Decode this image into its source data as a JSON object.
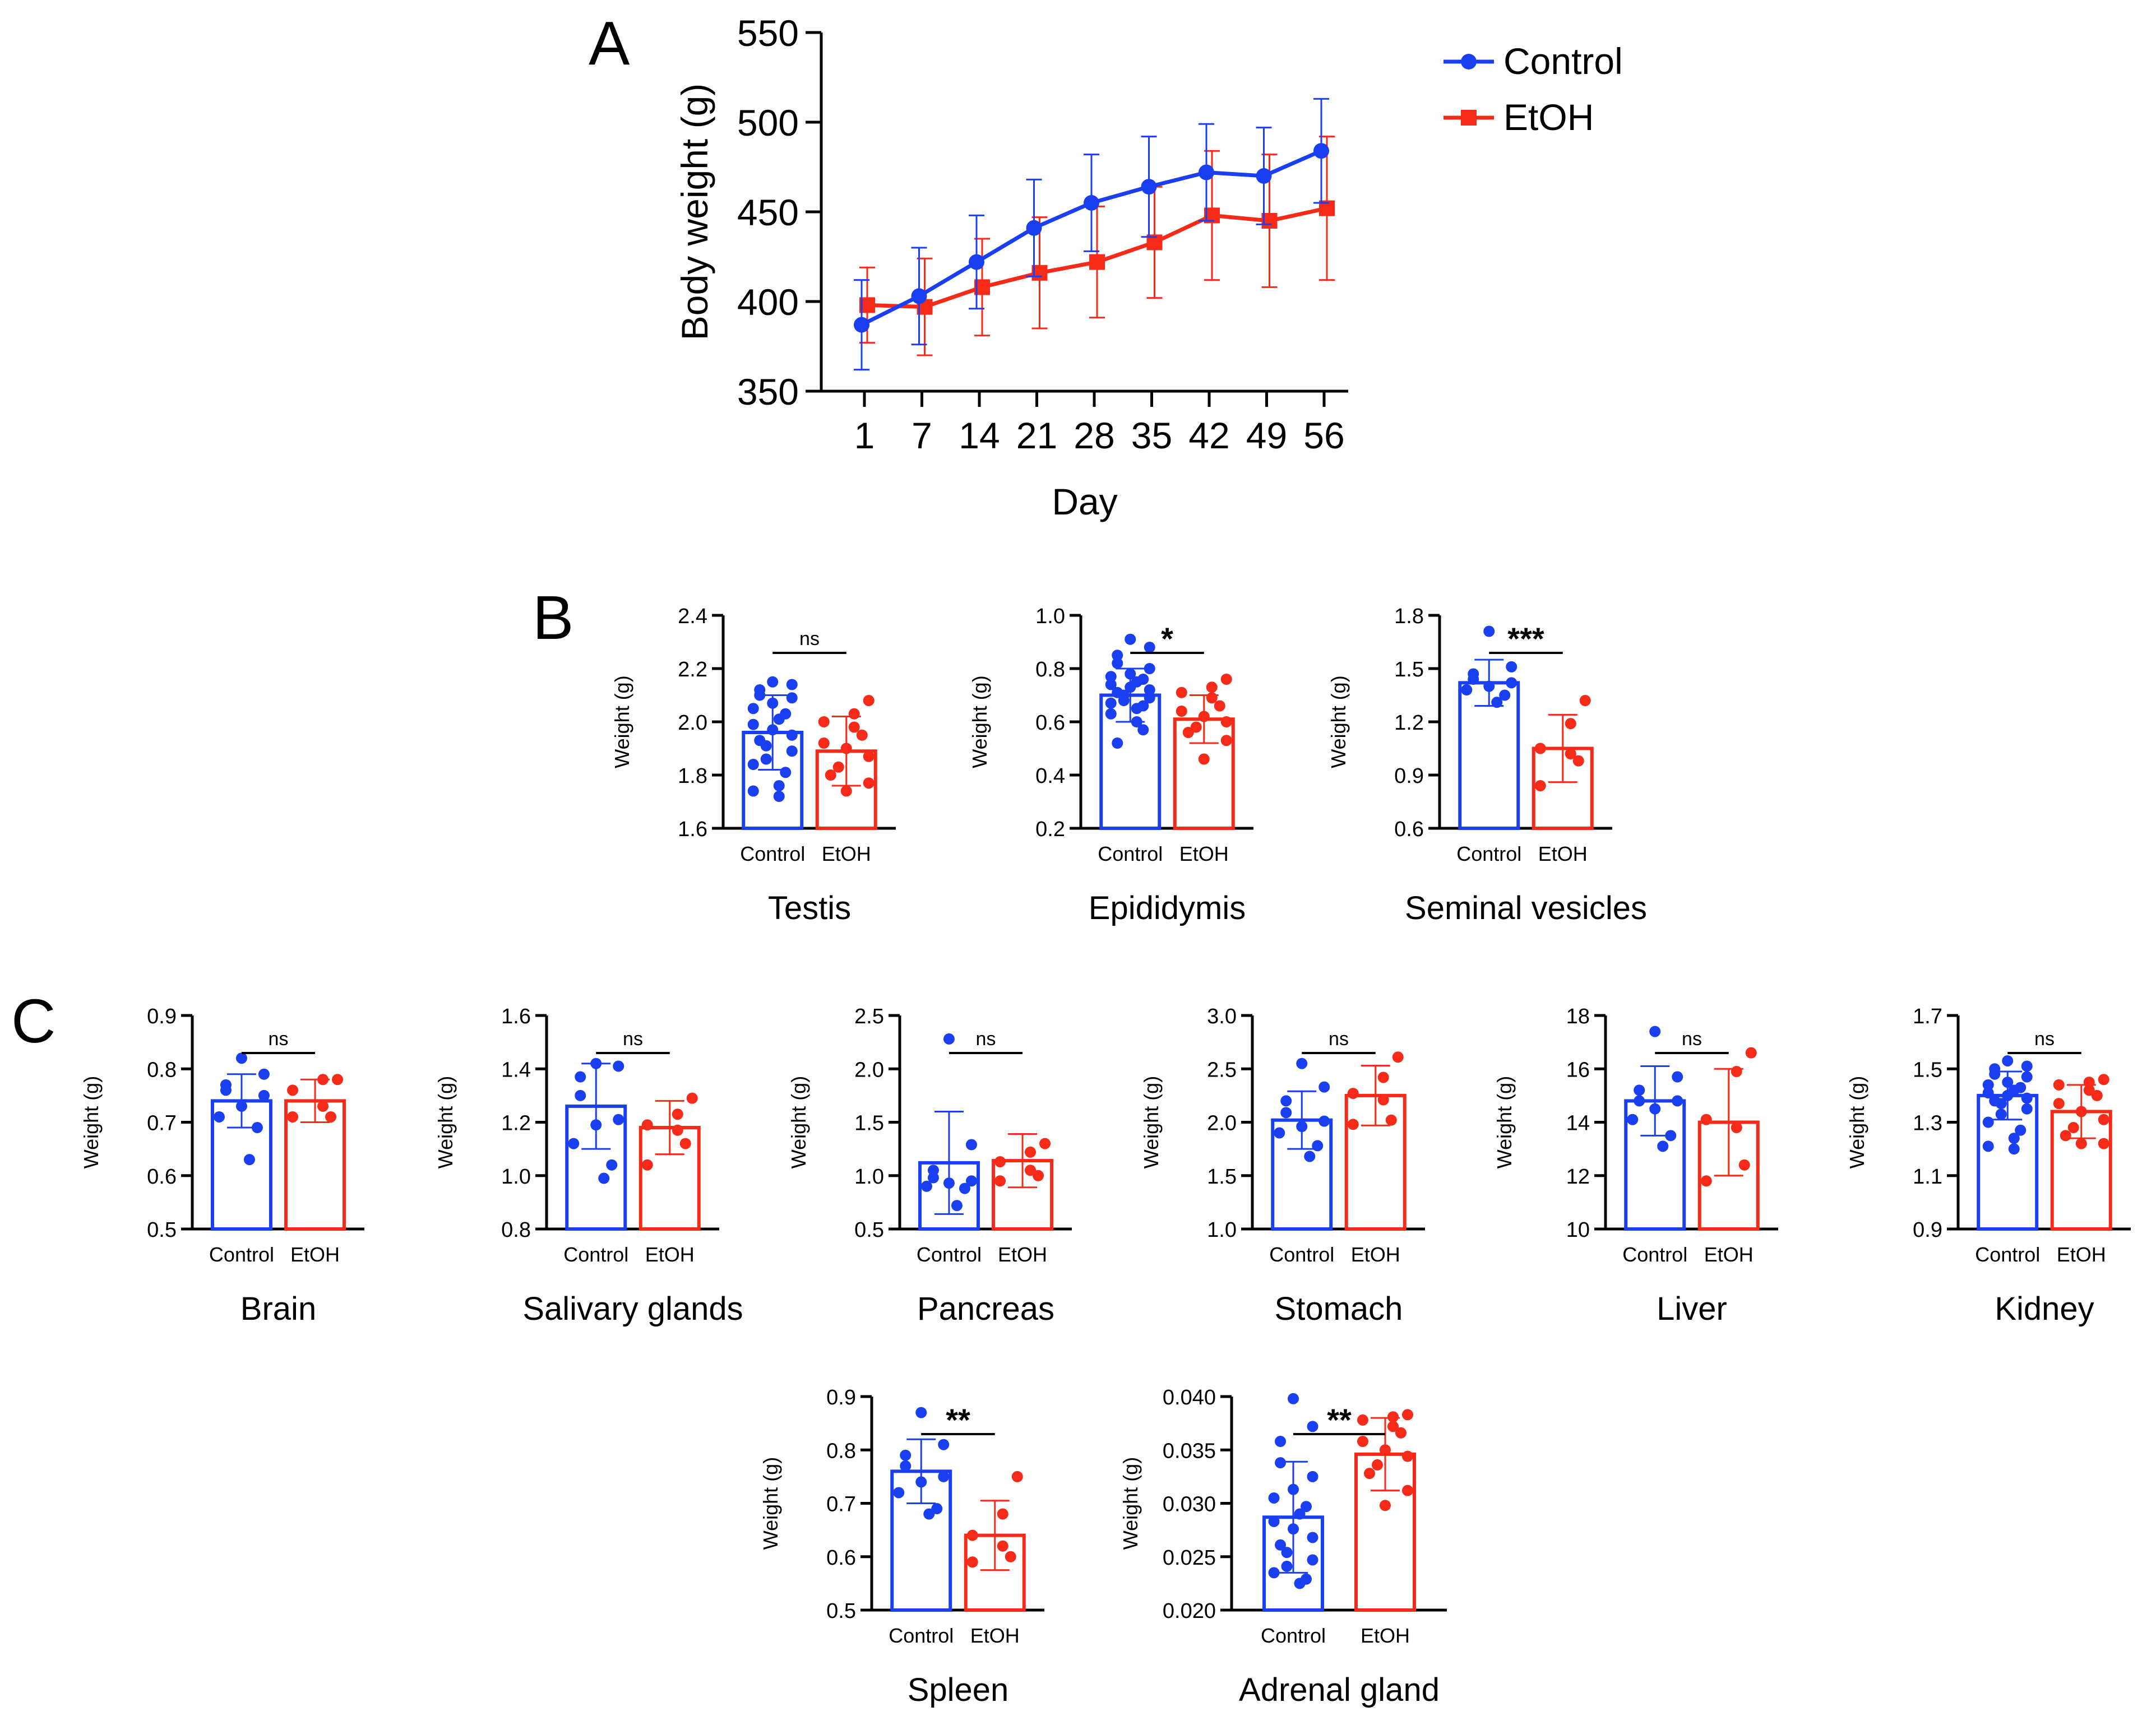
{
  "colors": {
    "control": "#1a3ff0",
    "etoh": "#f52a18",
    "axis": "#000000"
  },
  "panel_labels": {
    "a": "A",
    "b": "B",
    "c": "C"
  },
  "chart_data": [
    {
      "type": "line",
      "panel": "A",
      "xlabel": "Day",
      "ylabel": "Body weight (g)",
      "x": [
        1,
        7,
        14,
        21,
        28,
        35,
        42,
        49,
        56
      ],
      "ylim": [
        350,
        550
      ],
      "yticks": [
        350,
        400,
        450,
        500,
        550
      ],
      "legend_position": "top-right",
      "series": [
        {
          "name": "Control",
          "marker": "circle",
          "values": [
            387,
            403,
            422,
            441,
            455,
            464,
            472,
            470,
            484
          ],
          "sd": [
            25,
            27,
            26,
            27,
            27,
            28,
            27,
            27,
            29
          ]
        },
        {
          "name": "EtOH",
          "marker": "square",
          "values": [
            398,
            397,
            408,
            416,
            422,
            433,
            448,
            445,
            452
          ],
          "sd": [
            21,
            27,
            27,
            31,
            31,
            31,
            36,
            37,
            40
          ]
        }
      ]
    },
    {
      "type": "bar",
      "panel": "B",
      "title": "Testis",
      "ylabel": "Weight (g)",
      "categories": [
        "Control",
        "EtOH"
      ],
      "ylim": [
        1.6,
        2.4
      ],
      "yticks": [
        "1.6",
        "1.8",
        "2.0",
        "2.2",
        "2.4"
      ],
      "means": [
        1.96,
        1.89
      ],
      "sd": [
        0.14,
        0.13
      ],
      "significance": "ns",
      "points": [
        [
          2.15,
          2.14,
          2.12,
          2.1,
          2.09,
          2.07,
          2.05,
          2.03,
          2.01,
          1.99,
          1.97,
          1.95,
          1.93,
          1.91,
          1.89,
          1.86,
          1.84,
          1.81,
          1.76,
          1.74,
          1.72
        ],
        [
          2.08,
          2.03,
          2.0,
          1.98,
          1.95,
          1.92,
          1.9,
          1.87,
          1.83,
          1.8,
          1.77,
          1.74
        ]
      ]
    },
    {
      "type": "bar",
      "panel": "B",
      "title": "Epididymis",
      "ylabel": "Weight (g)",
      "categories": [
        "Control",
        "EtOH"
      ],
      "ylim": [
        0.2,
        1.0
      ],
      "yticks": [
        "0.2",
        "0.4",
        "0.6",
        "0.8",
        "1.0"
      ],
      "means": [
        0.7,
        0.61
      ],
      "sd": [
        0.1,
        0.09
      ],
      "significance": "*",
      "points": [
        [
          0.91,
          0.88,
          0.85,
          0.82,
          0.8,
          0.78,
          0.77,
          0.76,
          0.75,
          0.74,
          0.73,
          0.72,
          0.71,
          0.7,
          0.69,
          0.68,
          0.67,
          0.66,
          0.65,
          0.63,
          0.6,
          0.57,
          0.52
        ],
        [
          0.76,
          0.73,
          0.71,
          0.69,
          0.66,
          0.64,
          0.62,
          0.6,
          0.58,
          0.56,
          0.53,
          0.46
        ]
      ]
    },
    {
      "type": "bar",
      "panel": "B",
      "title": "Seminal vesicles",
      "ylabel": "Weight (g)",
      "categories": [
        "Control",
        "EtOH"
      ],
      "ylim": [
        0.6,
        1.8
      ],
      "yticks": [
        "0.6",
        "0.9",
        "1.2",
        "1.5",
        "1.8"
      ],
      "means": [
        1.42,
        1.05
      ],
      "sd": [
        0.13,
        0.19
      ],
      "significance": "***",
      "points": [
        [
          1.71,
          1.51,
          1.47,
          1.44,
          1.42,
          1.4,
          1.38,
          1.35,
          1.31
        ],
        [
          1.32,
          1.19,
          1.05,
          1.02,
          0.98,
          0.84
        ]
      ]
    },
    {
      "type": "bar",
      "panel": "C",
      "title": "Brain",
      "ylabel": "Weight (g)",
      "categories": [
        "Control",
        "EtOH"
      ],
      "ylim": [
        0.5,
        0.9
      ],
      "yticks": [
        "0.5",
        "0.6",
        "0.7",
        "0.8",
        "0.9"
      ],
      "means": [
        0.74,
        0.74
      ],
      "sd": [
        0.05,
        0.04
      ],
      "significance": "ns",
      "points": [
        [
          0.82,
          0.79,
          0.77,
          0.76,
          0.75,
          0.73,
          0.71,
          0.69,
          0.63
        ],
        [
          0.78,
          0.78,
          0.76,
          0.73,
          0.71,
          0.71
        ]
      ]
    },
    {
      "type": "bar",
      "panel": "C",
      "title": "Salivary glands",
      "ylabel": "Weight (g)",
      "categories": [
        "Control",
        "EtOH"
      ],
      "ylim": [
        0.8,
        1.6
      ],
      "yticks": [
        "0.8",
        "1.0",
        "1.2",
        "1.4",
        "1.6"
      ],
      "means": [
        1.26,
        1.18
      ],
      "sd": [
        0.16,
        0.1
      ],
      "significance": "ns",
      "points": [
        [
          1.42,
          1.41,
          1.37,
          1.3,
          1.21,
          1.19,
          1.12,
          1.04,
          0.99
        ],
        [
          1.29,
          1.23,
          1.19,
          1.17,
          1.12,
          1.04
        ]
      ]
    },
    {
      "type": "bar",
      "panel": "C",
      "title": "Pancreas",
      "ylabel": "Weight (g)",
      "categories": [
        "Control",
        "EtOH"
      ],
      "ylim": [
        0.5,
        2.5
      ],
      "yticks": [
        "0.5",
        "1.0",
        "1.5",
        "2.0",
        "2.5"
      ],
      "means": [
        1.12,
        1.14
      ],
      "sd": [
        0.48,
        0.25
      ],
      "significance": "ns",
      "points": [
        [
          2.28,
          1.29,
          1.05,
          0.98,
          0.95,
          0.93,
          0.9,
          0.88,
          0.72
        ],
        [
          1.3,
          1.22,
          1.13,
          1.05,
          1.0,
          0.95
        ]
      ]
    },
    {
      "type": "bar",
      "panel": "C",
      "title": "Stomach",
      "ylabel": "Weight (g)",
      "categories": [
        "Control",
        "EtOH"
      ],
      "ylim": [
        1.0,
        3.0
      ],
      "yticks": [
        "1.0",
        "1.5",
        "2.0",
        "2.5",
        "3.0"
      ],
      "means": [
        2.02,
        2.25
      ],
      "sd": [
        0.27,
        0.28
      ],
      "significance": "ns",
      "points": [
        [
          2.55,
          2.33,
          2.2,
          2.09,
          2.01,
          1.96,
          1.9,
          1.78,
          1.68
        ],
        [
          2.61,
          2.42,
          2.27,
          2.21,
          2.02,
          1.98
        ]
      ]
    },
    {
      "type": "bar",
      "panel": "C",
      "title": "Liver",
      "ylabel": "Weight (g)",
      "categories": [
        "Control",
        "EtOH"
      ],
      "ylim": [
        10,
        18
      ],
      "yticks": [
        "10",
        "12",
        "14",
        "16",
        "18"
      ],
      "means": [
        14.8,
        14.0
      ],
      "sd": [
        1.3,
        2.0
      ],
      "significance": "ns",
      "points": [
        [
          17.4,
          15.7,
          15.2,
          14.8,
          14.8,
          14.5,
          14.1,
          13.5,
          13.1
        ],
        [
          16.6,
          15.9,
          14.1,
          13.8,
          12.4,
          11.8
        ]
      ]
    },
    {
      "type": "bar",
      "panel": "C",
      "title": "Kidney",
      "ylabel": "Weight (g)",
      "categories": [
        "Control",
        "EtOH"
      ],
      "ylim": [
        0.9,
        1.7
      ],
      "yticks": [
        "0.9",
        "1.1",
        "1.3",
        "1.5",
        "1.7"
      ],
      "means": [
        1.4,
        1.34
      ],
      "sd": [
        0.09,
        0.1
      ],
      "significance": "ns",
      "points": [
        [
          1.53,
          1.51,
          1.5,
          1.48,
          1.47,
          1.45,
          1.44,
          1.43,
          1.42,
          1.41,
          1.4,
          1.39,
          1.38,
          1.37,
          1.35,
          1.33,
          1.3,
          1.27,
          1.24,
          1.21,
          1.2
        ],
        [
          1.46,
          1.45,
          1.44,
          1.42,
          1.4,
          1.37,
          1.34,
          1.31,
          1.28,
          1.25,
          1.22,
          1.22
        ]
      ]
    },
    {
      "type": "bar",
      "panel": "C",
      "title": "Spleen",
      "ylabel": "Weight (g)",
      "categories": [
        "Control",
        "EtOH"
      ],
      "ylim": [
        0.5,
        0.9
      ],
      "yticks": [
        "0.5",
        "0.6",
        "0.7",
        "0.8",
        "0.9"
      ],
      "means": [
        0.76,
        0.64
      ],
      "sd": [
        0.06,
        0.065
      ],
      "significance": "**",
      "points": [
        [
          0.87,
          0.81,
          0.79,
          0.77,
          0.75,
          0.74,
          0.72,
          0.69,
          0.68
        ],
        [
          0.75,
          0.68,
          0.64,
          0.62,
          0.6,
          0.59
        ]
      ]
    },
    {
      "type": "bar",
      "panel": "C",
      "title": "Adrenal gland",
      "ylabel": "Weight (g)",
      "categories": [
        "Control",
        "EtOH"
      ],
      "ylim": [
        0.02,
        0.04
      ],
      "yticks": [
        "0.020",
        "0.025",
        "0.030",
        "0.035",
        "0.040"
      ],
      "means": [
        0.0287,
        0.0346
      ],
      "sd": [
        0.0052,
        0.0034
      ],
      "significance": "**",
      "points": [
        [
          0.0398,
          0.0372,
          0.0358,
          0.0338,
          0.0325,
          0.0313,
          0.0305,
          0.0297,
          0.029,
          0.0283,
          0.0276,
          0.0268,
          0.0261,
          0.0254,
          0.0247,
          0.0241,
          0.0235,
          0.0229,
          0.0225
        ],
        [
          0.0383,
          0.0381,
          0.0378,
          0.0372,
          0.0366,
          0.0358,
          0.035,
          0.0344,
          0.0336,
          0.0328,
          0.0312,
          0.0298
        ]
      ]
    }
  ]
}
